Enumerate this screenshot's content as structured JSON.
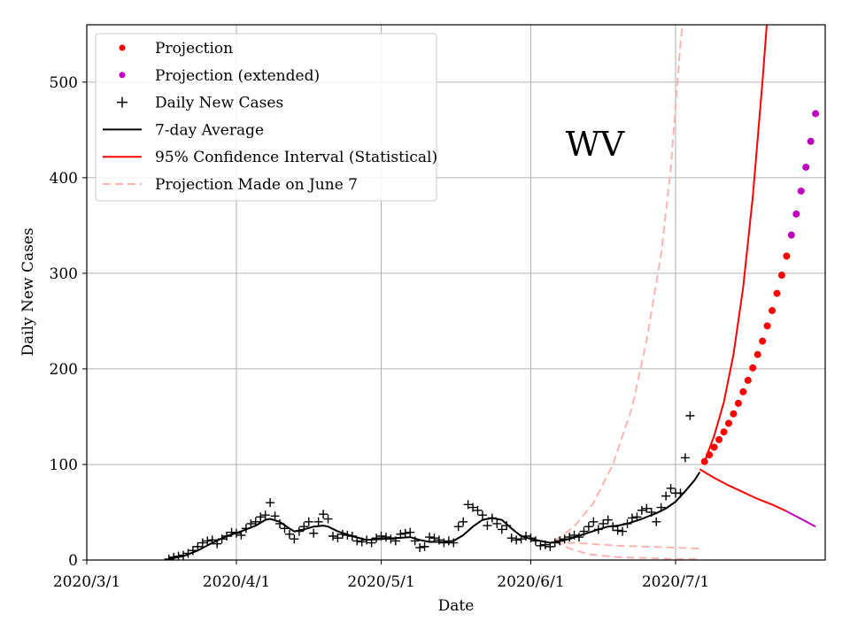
{
  "chart_data": {
    "type": "line",
    "title": "",
    "annotation": "WV",
    "xlabel": "Date",
    "ylabel": "Daily New Cases",
    "x_axis": {
      "unit": "days since 2020-03-01",
      "range": [
        0,
        153
      ],
      "ticks": [
        {
          "value": 0,
          "label": "2020/3/1"
        },
        {
          "value": 31,
          "label": "2020/4/1"
        },
        {
          "value": 61,
          "label": "2020/5/1"
        },
        {
          "value": 92,
          "label": "2020/6/1"
        },
        {
          "value": 122,
          "label": "2020/7/1"
        }
      ]
    },
    "y_axis": {
      "range": [
        0,
        560
      ],
      "ticks": [
        0,
        100,
        200,
        300,
        400,
        500
      ]
    },
    "grid": true,
    "legend_position": "top-left",
    "legend": [
      {
        "key": "projection",
        "label": "Projection",
        "marker": "dot",
        "color": "#ff0000"
      },
      {
        "key": "projection_ext",
        "label": "Projection (extended)",
        "marker": "dot",
        "color": "#bf00bf"
      },
      {
        "key": "daily",
        "label": "Daily New Cases",
        "marker": "plus",
        "color": "#000000"
      },
      {
        "key": "avg7",
        "label": "7-day Average",
        "marker": "line",
        "color": "#000000"
      },
      {
        "key": "ci",
        "label": "95% Confidence Interval (Statistical)",
        "marker": "line",
        "color": "#ff0000"
      },
      {
        "key": "june7",
        "label": "Projection Made on June 7",
        "marker": "dashed",
        "color": "#ffb3b3"
      }
    ],
    "series": [
      {
        "name": "Daily New Cases",
        "style": "plus",
        "color": "#000000",
        "points": [
          [
            17,
            1
          ],
          [
            18,
            3
          ],
          [
            19,
            4
          ],
          [
            20,
            5
          ],
          [
            21,
            7
          ],
          [
            22,
            10
          ],
          [
            23,
            14
          ],
          [
            24,
            18
          ],
          [
            25,
            20
          ],
          [
            26,
            21
          ],
          [
            27,
            17
          ],
          [
            28,
            22
          ],
          [
            29,
            25
          ],
          [
            30,
            29
          ],
          [
            31,
            28
          ],
          [
            32,
            26
          ],
          [
            33,
            33
          ],
          [
            34,
            38
          ],
          [
            35,
            40
          ],
          [
            36,
            45
          ],
          [
            37,
            47
          ],
          [
            38,
            60
          ],
          [
            39,
            46
          ],
          [
            40,
            38
          ],
          [
            41,
            33
          ],
          [
            42,
            27
          ],
          [
            43,
            22
          ],
          [
            44,
            30
          ],
          [
            45,
            35
          ],
          [
            46,
            40
          ],
          [
            47,
            28
          ],
          [
            48,
            40
          ],
          [
            49,
            48
          ],
          [
            50,
            43
          ],
          [
            51,
            25
          ],
          [
            52,
            23
          ],
          [
            53,
            27
          ],
          [
            54,
            26
          ],
          [
            55,
            25
          ],
          [
            56,
            20
          ],
          [
            57,
            19
          ],
          [
            58,
            21
          ],
          [
            59,
            18
          ],
          [
            60,
            23
          ],
          [
            61,
            25
          ],
          [
            62,
            24
          ],
          [
            63,
            22
          ],
          [
            64,
            20
          ],
          [
            65,
            27
          ],
          [
            66,
            28
          ],
          [
            67,
            29
          ],
          [
            68,
            20
          ],
          [
            69,
            13
          ],
          [
            70,
            14
          ],
          [
            71,
            24
          ],
          [
            72,
            23
          ],
          [
            73,
            21
          ],
          [
            74,
            18
          ],
          [
            75,
            20
          ],
          [
            76,
            18
          ],
          [
            77,
            35
          ],
          [
            78,
            40
          ],
          [
            79,
            58
          ],
          [
            80,
            55
          ],
          [
            81,
            52
          ],
          [
            82,
            47
          ],
          [
            83,
            36
          ],
          [
            84,
            44
          ],
          [
            85,
            38
          ],
          [
            86,
            32
          ],
          [
            87,
            36
          ],
          [
            88,
            23
          ],
          [
            89,
            21
          ],
          [
            90,
            22
          ],
          [
            91,
            25
          ],
          [
            92,
            23
          ],
          [
            93,
            20
          ],
          [
            94,
            15
          ],
          [
            95,
            16
          ],
          [
            96,
            14
          ],
          [
            97,
            18
          ],
          [
            98,
            20
          ],
          [
            99,
            22
          ],
          [
            100,
            24
          ],
          [
            101,
            26
          ],
          [
            102,
            24
          ],
          [
            103,
            30
          ],
          [
            104,
            35
          ],
          [
            105,
            40
          ],
          [
            106,
            32
          ],
          [
            107,
            38
          ],
          [
            108,
            42
          ],
          [
            109,
            35
          ],
          [
            110,
            31
          ],
          [
            111,
            30
          ],
          [
            112,
            38
          ],
          [
            113,
            44
          ],
          [
            114,
            45
          ],
          [
            115,
            52
          ],
          [
            116,
            54
          ],
          [
            117,
            50
          ],
          [
            118,
            40
          ],
          [
            119,
            55
          ],
          [
            120,
            67
          ],
          [
            121,
            75
          ],
          [
            122,
            70
          ],
          [
            123,
            70
          ],
          [
            124,
            107
          ],
          [
            125,
            151
          ]
        ]
      },
      {
        "name": "7-day Average",
        "style": "line",
        "color": "#000000",
        "points": [
          [
            17,
            1
          ],
          [
            20,
            4
          ],
          [
            23,
            10
          ],
          [
            26,
            18
          ],
          [
            29,
            25
          ],
          [
            32,
            30
          ],
          [
            35,
            36
          ],
          [
            37,
            42
          ],
          [
            38,
            43
          ],
          [
            40,
            40
          ],
          [
            42,
            33
          ],
          [
            43,
            30
          ],
          [
            45,
            32
          ],
          [
            47,
            35
          ],
          [
            49,
            36
          ],
          [
            50,
            35
          ],
          [
            52,
            30
          ],
          [
            55,
            25
          ],
          [
            58,
            21
          ],
          [
            61,
            22
          ],
          [
            64,
            23
          ],
          [
            67,
            24
          ],
          [
            69,
            21
          ],
          [
            71,
            19
          ],
          [
            74,
            19
          ],
          [
            76,
            20
          ],
          [
            78,
            26
          ],
          [
            80,
            35
          ],
          [
            82,
            42
          ],
          [
            84,
            44
          ],
          [
            86,
            42
          ],
          [
            88,
            33
          ],
          [
            90,
            25
          ],
          [
            92,
            22
          ],
          [
            94,
            20
          ],
          [
            96,
            18
          ],
          [
            98,
            20
          ],
          [
            100,
            22
          ],
          [
            103,
            27
          ],
          [
            106,
            32
          ],
          [
            108,
            35
          ],
          [
            110,
            36
          ],
          [
            112,
            38
          ],
          [
            115,
            43
          ],
          [
            118,
            49
          ],
          [
            120,
            54
          ],
          [
            122,
            61
          ],
          [
            124,
            72
          ],
          [
            126,
            84
          ],
          [
            127,
            92
          ]
        ]
      },
      {
        "name": "Projection",
        "style": "dot",
        "color": "#ff0000",
        "points": [
          [
            128,
            103
          ],
          [
            129,
            110
          ],
          [
            130,
            118
          ],
          [
            131,
            126
          ],
          [
            132,
            134
          ],
          [
            133,
            143
          ],
          [
            134,
            153
          ],
          [
            135,
            164
          ],
          [
            136,
            176
          ],
          [
            137,
            188
          ],
          [
            138,
            201
          ],
          [
            139,
            215
          ],
          [
            140,
            229
          ],
          [
            141,
            245
          ],
          [
            142,
            261
          ],
          [
            143,
            279
          ],
          [
            144,
            298
          ],
          [
            145,
            318
          ]
        ]
      },
      {
        "name": "Projection (extended)",
        "style": "dot",
        "color": "#bf00bf",
        "points": [
          [
            146,
            340
          ],
          [
            147,
            362
          ],
          [
            148,
            386
          ],
          [
            149,
            411
          ],
          [
            150,
            438
          ],
          [
            151,
            467
          ]
        ]
      },
      {
        "name": "95% CI upper",
        "style": "line",
        "color": "#ff0000",
        "points": [
          [
            128,
            103
          ],
          [
            130,
            130
          ],
          [
            132,
            165
          ],
          [
            134,
            215
          ],
          [
            136,
            285
          ],
          [
            138,
            380
          ],
          [
            140,
            500
          ],
          [
            140.9,
            560
          ]
        ]
      },
      {
        "name": "95% CI lower",
        "style": "line",
        "color": "#ff0000",
        "points": [
          [
            127,
            95
          ],
          [
            130,
            86
          ],
          [
            133,
            78
          ],
          [
            136,
            71
          ],
          [
            139,
            64
          ],
          [
            142,
            58
          ],
          [
            145,
            51
          ]
        ]
      },
      {
        "name": "95% CI lower (extended)",
        "style": "line",
        "color": "#bf00bf",
        "points": [
          [
            145,
            51
          ],
          [
            148,
            43
          ],
          [
            151,
            35
          ]
        ]
      },
      {
        "name": "June 7 projection upper",
        "style": "dashed",
        "color": "#ffb3b3",
        "points": [
          [
            97,
            20
          ],
          [
            101,
            35
          ],
          [
            105,
            60
          ],
          [
            109,
            100
          ],
          [
            113,
            160
          ],
          [
            116,
            230
          ],
          [
            119,
            320
          ],
          [
            121,
            410
          ],
          [
            122,
            475
          ],
          [
            123,
            540
          ],
          [
            123.4,
            560
          ]
        ]
      },
      {
        "name": "June 7 projection middle",
        "style": "dashed",
        "color": "#ffb3b3",
        "points": [
          [
            97,
            20
          ],
          [
            100,
            18
          ],
          [
            104,
            17
          ],
          [
            110,
            15
          ],
          [
            116,
            14
          ],
          [
            122,
            13
          ],
          [
            127,
            12
          ]
        ]
      },
      {
        "name": "June 7 projection lower",
        "style": "dashed",
        "color": "#ffb3b3",
        "points": [
          [
            97,
            20
          ],
          [
            100,
            12
          ],
          [
            104,
            6
          ],
          [
            110,
            3
          ],
          [
            116,
            2
          ],
          [
            122,
            1
          ],
          [
            127,
            1
          ]
        ]
      }
    ]
  }
}
